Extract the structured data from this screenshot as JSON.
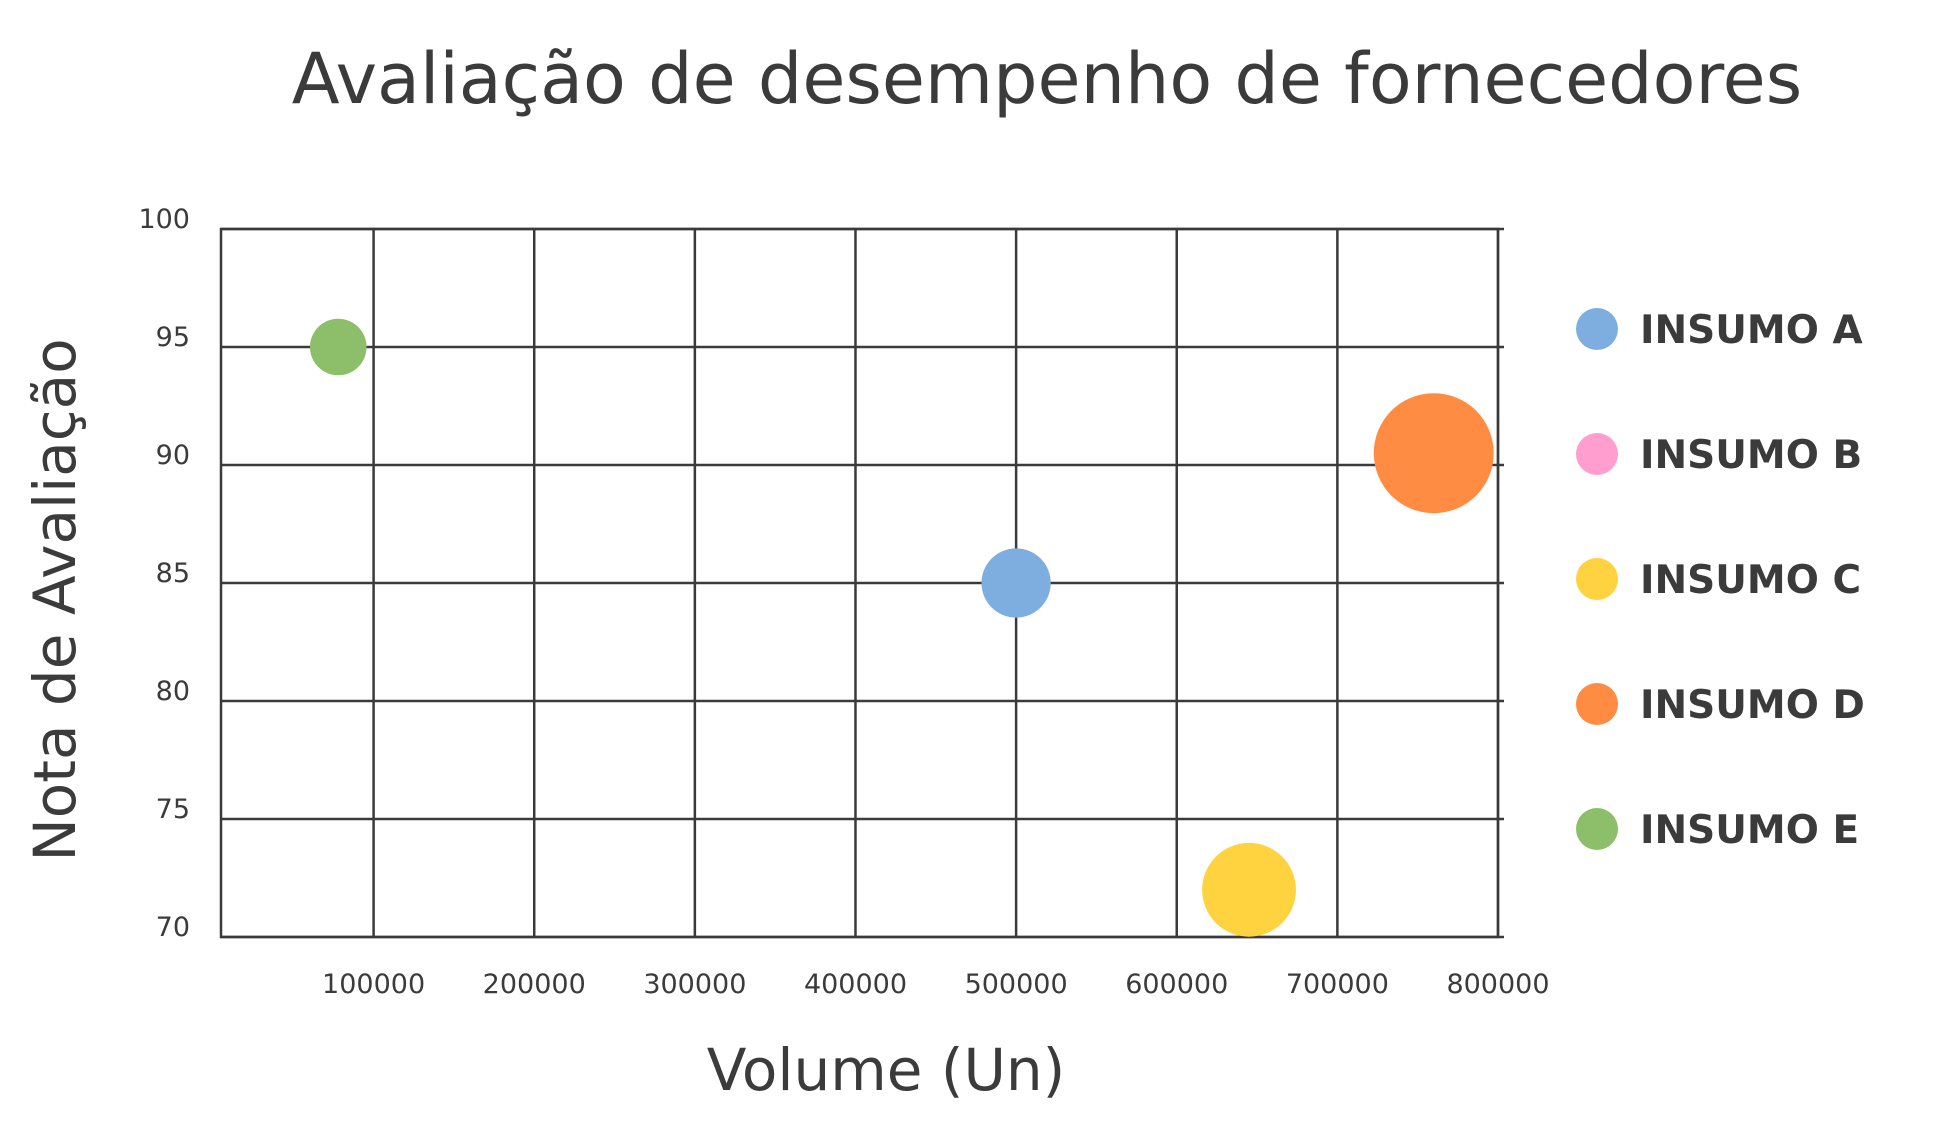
{
  "chart_data": {
    "type": "scatter",
    "subtype": "bubble",
    "title": "Avaliação de desempenho de fornecedores",
    "xlabel": "Volume (Un)",
    "ylabel": "Nota de Avaliação",
    "xlim": [
      5000,
      800000
    ],
    "ylim": [
      70,
      100
    ],
    "x_ticks": [
      100000,
      200000,
      300000,
      400000,
      500000,
      600000,
      700000,
      800000
    ],
    "y_ticks": [
      70,
      75,
      80,
      85,
      90,
      95,
      100
    ],
    "grid": true,
    "legend_position": "right",
    "series": [
      {
        "name": "INSUMO A",
        "color": "#7eaee0",
        "points": [
          {
            "x": 500000,
            "y": 85,
            "size": 3
          }
        ]
      },
      {
        "name": "INSUMO B",
        "color": "#ff9ecf",
        "points": []
      },
      {
        "name": "INSUMO C",
        "color": "#ffd23f",
        "points": [
          {
            "x": 645000,
            "y": 72,
            "size": 5.5
          }
        ]
      },
      {
        "name": "INSUMO D",
        "color": "#ff8c42",
        "points": [
          {
            "x": 760000,
            "y": 90.5,
            "size": 9
          }
        ]
      },
      {
        "name": "INSUMO E",
        "color": "#8dbf6a",
        "points": [
          {
            "x": 78000,
            "y": 95,
            "size": 2
          }
        ]
      }
    ]
  }
}
